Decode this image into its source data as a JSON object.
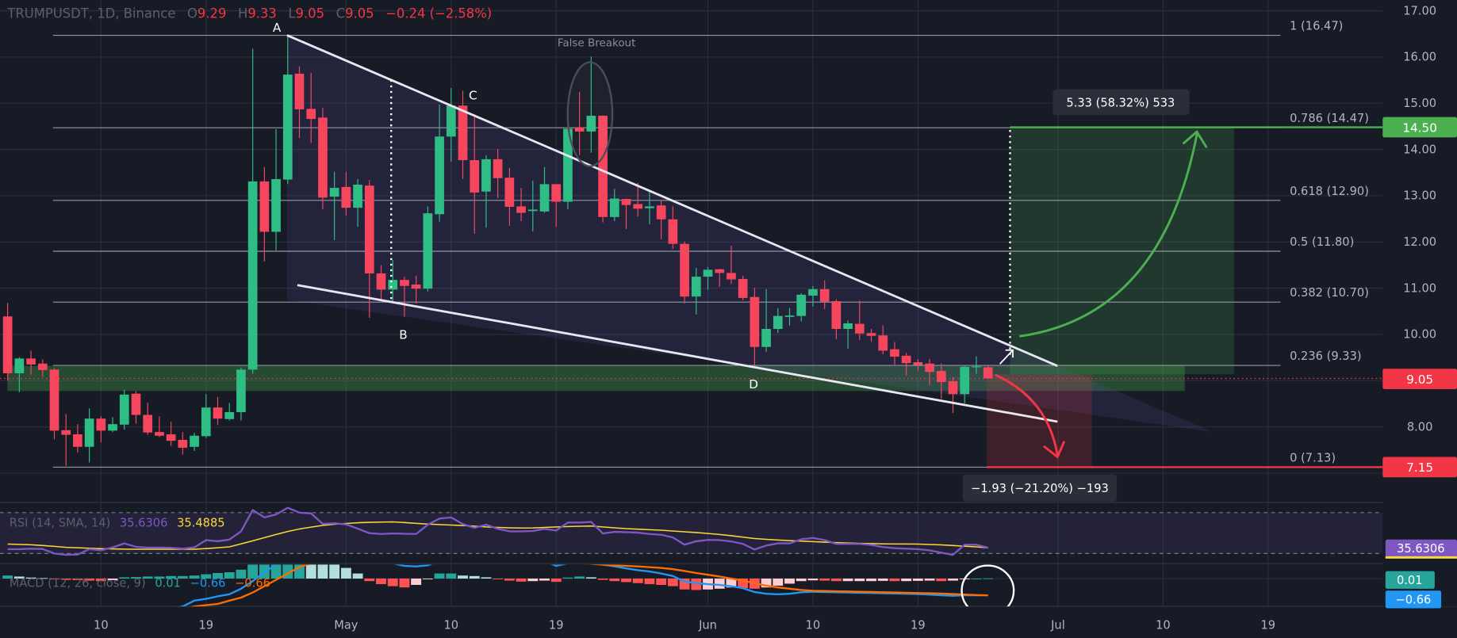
{
  "header": {
    "symbol": "TRUMPUSDT, 1D, Binance",
    "open_label": "O",
    "open": "9.29",
    "high_label": "H",
    "high": "9.33",
    "low_label": "L",
    "low": "9.05",
    "close_label": "C",
    "close": "9.05",
    "change": "−0.24 (−2.58%)"
  },
  "colors": {
    "background": "#171b26",
    "grid": "#2a2e39",
    "up": "#2ebd85",
    "down": "#f6465d",
    "rsi": "#7e57c2",
    "rsi_sma": "#fdd835",
    "macd": "#2196f3",
    "signal": "#ff6d00",
    "target": "#4caf50",
    "stop": "#f23645"
  },
  "price_axis": {
    "labels": [
      "17.00",
      "16.00",
      "15.00",
      "14.00",
      "13.00",
      "12.00",
      "11.00",
      "10.00",
      "8.00"
    ],
    "target_tag": "14.50",
    "last_price_tag": "9.05",
    "stop_tag": "7.15"
  },
  "time_axis": {
    "labels": [
      {
        "text": "10",
        "date": "04-10"
      },
      {
        "text": "19",
        "date": "04-19"
      },
      {
        "text": "May",
        "date": "05-01"
      },
      {
        "text": "10",
        "date": "05-10"
      },
      {
        "text": "19",
        "date": "05-19"
      },
      {
        "text": "Jun",
        "date": "06-01"
      },
      {
        "text": "10",
        "date": "06-10"
      },
      {
        "text": "19",
        "date": "06-19"
      },
      {
        "text": "Jul",
        "date": "07-01"
      },
      {
        "text": "10",
        "date": "07-10"
      },
      {
        "text": "19",
        "date": "07-19"
      }
    ]
  },
  "fibonacci": [
    {
      "label": "1 (16.47)",
      "price": 16.47
    },
    {
      "label": "0.786 (14.47)",
      "price": 14.47
    },
    {
      "label": "0.618 (12.90)",
      "price": 12.9
    },
    {
      "label": "0.5 (11.80)",
      "price": 11.8
    },
    {
      "label": "0.382 (10.70)",
      "price": 10.7
    },
    {
      "label": "0.236 (9.33)",
      "price": 9.33
    },
    {
      "label": "0 (7.13)",
      "price": 7.13
    }
  ],
  "annotations": {
    "point_a": "A",
    "point_b": "B",
    "point_c": "C",
    "point_d": "D",
    "false_breakout": "False Breakout",
    "target_box": "5.33 (58.32%) 533",
    "stop_box": "−1.93 (−21.20%) −193"
  },
  "rsi": {
    "label": "RSI (14, SMA, 14)",
    "value": "35.6306",
    "sma_value": "35.4885",
    "tag": "35.6306"
  },
  "macd": {
    "label": "MACD (12, 26, close, 9)",
    "hist_value": "0.01",
    "macd_value": "−0.66",
    "signal_value": "−0.66",
    "hist_tag": "0.01",
    "macd_tag": "−0.66"
  },
  "chart_data": {
    "type": "candlestick",
    "symbol": "TRUMPUSDT",
    "interval": "1D",
    "exchange": "Binance",
    "ylim": [
      6.6,
      17.3
    ],
    "columns": [
      "date",
      "open",
      "high",
      "low",
      "close"
    ],
    "candles": [
      [
        "04-02",
        10.39,
        10.68,
        9.0,
        9.16
      ],
      [
        "04-03",
        9.16,
        9.51,
        8.75,
        9.48
      ],
      [
        "04-04",
        9.48,
        9.65,
        9.13,
        9.35
      ],
      [
        "04-05",
        9.37,
        9.46,
        9.08,
        9.23
      ],
      [
        "04-06",
        9.24,
        9.27,
        7.73,
        7.92
      ],
      [
        "04-07",
        7.93,
        8.28,
        7.16,
        7.83
      ],
      [
        "04-08",
        7.84,
        8.06,
        7.45,
        7.57
      ],
      [
        "04-09",
        7.57,
        8.4,
        7.23,
        8.18
      ],
      [
        "04-10",
        8.18,
        8.23,
        7.67,
        7.92
      ],
      [
        "04-11",
        7.92,
        8.21,
        7.89,
        8.06
      ],
      [
        "04-12",
        8.05,
        8.8,
        7.94,
        8.7
      ],
      [
        "04-13",
        8.72,
        8.78,
        8.07,
        8.26
      ],
      [
        "04-14",
        8.26,
        8.52,
        7.83,
        7.88
      ],
      [
        "04-15",
        7.89,
        8.23,
        7.78,
        7.81
      ],
      [
        "04-16",
        7.84,
        8.11,
        7.59,
        7.7
      ],
      [
        "04-17",
        7.72,
        7.89,
        7.4,
        7.55
      ],
      [
        "04-18",
        7.57,
        7.87,
        7.48,
        7.81
      ],
      [
        "04-19",
        7.8,
        8.71,
        7.76,
        8.42
      ],
      [
        "04-20",
        8.42,
        8.65,
        8.04,
        8.18
      ],
      [
        "04-21",
        8.17,
        8.52,
        8.14,
        8.32
      ],
      [
        "04-22",
        8.32,
        9.29,
        8.14,
        9.24
      ],
      [
        "04-23",
        9.24,
        16.18,
        9.15,
        13.31
      ],
      [
        "04-24",
        13.31,
        13.62,
        11.58,
        12.22
      ],
      [
        "04-25",
        12.22,
        14.44,
        11.82,
        13.36
      ],
      [
        "04-26",
        13.35,
        16.49,
        13.25,
        15.62
      ],
      [
        "04-27",
        15.64,
        15.8,
        14.25,
        14.87
      ],
      [
        "04-28",
        14.88,
        15.66,
        14.14,
        14.66
      ],
      [
        "04-29",
        14.69,
        14.9,
        12.71,
        12.96
      ],
      [
        "04-30",
        12.98,
        13.52,
        12.04,
        13.17
      ],
      [
        "05-01",
        13.19,
        13.52,
        12.57,
        12.74
      ],
      [
        "05-02",
        12.74,
        13.36,
        12.33,
        13.24
      ],
      [
        "05-03",
        13.22,
        13.34,
        10.36,
        11.32
      ],
      [
        "05-04",
        11.32,
        11.5,
        10.74,
        10.97
      ],
      [
        "05-05",
        10.97,
        11.61,
        10.71,
        11.18
      ],
      [
        "05-06",
        11.18,
        11.25,
        10.38,
        11.05
      ],
      [
        "05-07",
        11.08,
        11.27,
        10.67,
        10.99
      ],
      [
        "05-08",
        10.99,
        12.77,
        10.93,
        12.62
      ],
      [
        "05-09",
        12.6,
        14.97,
        12.44,
        14.28
      ],
      [
        "05-10",
        14.28,
        15.33,
        13.74,
        14.95
      ],
      [
        "05-11",
        14.95,
        15.27,
        13.36,
        13.77
      ],
      [
        "05-12",
        13.77,
        14.76,
        12.18,
        13.07
      ],
      [
        "05-13",
        13.09,
        13.88,
        12.31,
        13.79
      ],
      [
        "05-14",
        13.79,
        14.01,
        12.95,
        13.38
      ],
      [
        "05-15",
        13.39,
        13.6,
        12.35,
        12.76
      ],
      [
        "05-16",
        12.77,
        13.17,
        12.45,
        12.63
      ],
      [
        "05-17",
        12.67,
        13.33,
        12.23,
        12.7
      ],
      [
        "05-18",
        12.66,
        13.62,
        12.63,
        13.25
      ],
      [
        "05-19",
        13.25,
        13.26,
        12.33,
        12.87
      ],
      [
        "05-20",
        12.87,
        14.45,
        12.71,
        14.45
      ],
      [
        "05-21",
        14.48,
        15.25,
        13.88,
        14.39
      ],
      [
        "05-22",
        14.39,
        16.01,
        13.93,
        14.73
      ],
      [
        "05-23",
        14.73,
        14.74,
        12.42,
        12.54
      ],
      [
        "05-24",
        12.54,
        13.15,
        12.45,
        12.94
      ],
      [
        "05-25",
        12.93,
        12.94,
        12.28,
        12.8
      ],
      [
        "05-26",
        12.82,
        13.28,
        12.55,
        12.72
      ],
      [
        "05-27",
        12.73,
        13.08,
        12.38,
        12.77
      ],
      [
        "05-28",
        12.79,
        12.89,
        12.06,
        12.49
      ],
      [
        "05-29",
        12.49,
        12.77,
        11.85,
        11.96
      ],
      [
        "05-30",
        11.96,
        12.01,
        10.67,
        10.82
      ],
      [
        "05-31",
        10.82,
        11.44,
        10.43,
        11.25
      ],
      [
        "06-01",
        11.25,
        11.46,
        10.97,
        11.4
      ],
      [
        "06-02",
        11.41,
        11.42,
        11.03,
        11.33
      ],
      [
        "06-03",
        11.33,
        11.92,
        11.09,
        11.19
      ],
      [
        "06-04",
        11.2,
        11.27,
        10.74,
        10.79
      ],
      [
        "06-05",
        10.81,
        11.01,
        9.34,
        9.73
      ],
      [
        "06-06",
        9.73,
        10.98,
        9.62,
        10.12
      ],
      [
        "06-07",
        10.12,
        10.57,
        10.03,
        10.4
      ],
      [
        "06-08",
        10.38,
        10.57,
        10.19,
        10.41
      ],
      [
        "06-09",
        10.4,
        10.89,
        10.28,
        10.86
      ],
      [
        "06-10",
        10.84,
        11.05,
        10.6,
        10.98
      ],
      [
        "06-11",
        10.98,
        11.17,
        10.55,
        10.71
      ],
      [
        "06-12",
        10.72,
        10.76,
        9.9,
        10.12
      ],
      [
        "06-13",
        10.12,
        10.3,
        9.69,
        10.24
      ],
      [
        "06-14",
        10.23,
        10.73,
        9.88,
        10.02
      ],
      [
        "06-15",
        10.03,
        10.12,
        9.84,
        9.97
      ],
      [
        "06-16",
        9.98,
        10.2,
        9.57,
        9.65
      ],
      [
        "06-17",
        9.68,
        9.84,
        9.35,
        9.52
      ],
      [
        "06-18",
        9.54,
        9.6,
        9.11,
        9.38
      ],
      [
        "06-19",
        9.4,
        9.47,
        9.22,
        9.34
      ],
      [
        "06-20",
        9.37,
        9.47,
        8.9,
        9.19
      ],
      [
        "06-21",
        9.21,
        9.37,
        8.61,
        8.97
      ],
      [
        "06-22",
        8.99,
        9.08,
        8.3,
        8.71
      ],
      [
        "06-23",
        8.71,
        9.33,
        8.51,
        9.3
      ],
      [
        "06-24",
        9.3,
        9.53,
        9.15,
        9.31
      ],
      [
        "06-25",
        9.29,
        9.33,
        9.05,
        9.05
      ]
    ],
    "rsi": [
      34.2,
      34.2,
      34.7,
      34.4,
      30.0,
      28.7,
      29.0,
      34.2,
      33.1,
      36.0,
      39.9,
      36.5,
      35.8,
      35.8,
      35.5,
      34.7,
      36.0,
      43.1,
      42.0,
      43.6,
      51.7,
      72.6,
      65.3,
      68.2,
      74.7,
      70.0,
      69.2,
      59.0,
      59.5,
      58.5,
      54.3,
      49.9,
      49.1,
      49.6,
      49.3,
      49.1,
      58.2,
      64.2,
      65.3,
      58.8,
      55.1,
      58.2,
      54.1,
      51.7,
      51.7,
      52.0,
      54.1,
      52.5,
      60.3,
      60.3,
      60.9,
      49.6,
      51.2,
      50.9,
      50.4,
      49.1,
      48.3,
      45.7,
      38.6,
      42.0,
      43.3,
      43.1,
      41.8,
      39.4,
      33.9,
      37.8,
      39.9,
      39.9,
      43.9,
      45.2,
      43.1,
      39.4,
      39.4,
      39.4,
      38.4,
      36.3,
      35.2,
      34.7,
      34.2,
      33.1,
      30.8,
      28.7,
      38.6,
      38.6,
      35.63
    ],
    "rsi_sma": [
      39.2,
      38.9,
      38.5,
      37.8,
      37.0,
      36.0,
      35.6,
      35.1,
      34.7,
      34.5,
      34.3,
      34.2,
      34.2,
      34.2,
      34.2,
      34.2,
      34.2,
      34.8,
      35.6,
      36.5,
      39.4,
      42.4,
      45.5,
      48.6,
      51.5,
      54.0,
      55.8,
      57.5,
      58.6,
      59.4,
      60.1,
      60.5,
      60.7,
      60.9,
      60.3,
      59.5,
      58.8,
      58.3,
      57.8,
      57.4,
      56.8,
      56.0,
      55.5,
      55.1,
      54.9,
      55.0,
      55.5,
      56.0,
      56.4,
      56.7,
      56.9,
      56.0,
      55.1,
      54.3,
      53.8,
      53.3,
      52.8,
      52.0,
      51.2,
      50.5,
      49.6,
      48.6,
      47.4,
      46.0,
      44.6,
      43.9,
      43.2,
      42.6,
      42.1,
      41.6,
      41.1,
      40.7,
      40.3,
      39.9,
      39.7,
      39.4,
      39.3,
      39.3,
      39.2,
      38.8,
      38.4,
      37.8,
      37.1,
      36.5,
      35.49
    ],
    "rsi_levels": [
      70,
      30
    ],
    "macd_hist": [
      0.12,
      0.08,
      0.04,
      0.02,
      -0.03,
      -0.05,
      -0.06,
      -0.08,
      -0.1,
      -0.06,
      0.05,
      0.06,
      0.08,
      0.08,
      0.1,
      0.1,
      0.12,
      0.17,
      0.22,
      0.25,
      0.35,
      0.66,
      0.7,
      0.75,
      0.8,
      0.8,
      0.75,
      0.7,
      0.6,
      0.42,
      0.2,
      -0.1,
      -0.22,
      -0.3,
      -0.35,
      -0.25,
      -0.03,
      0.2,
      0.2,
      0.12,
      0.1,
      0.05,
      -0.03,
      -0.08,
      -0.12,
      -0.1,
      -0.08,
      -0.13,
      0.04,
      0.08,
      0.05,
      -0.05,
      -0.1,
      -0.14,
      -0.18,
      -0.22,
      -0.25,
      -0.3,
      -0.43,
      -0.45,
      -0.43,
      -0.4,
      -0.35,
      -0.38,
      -0.4,
      -0.35,
      -0.28,
      -0.2,
      -0.1,
      -0.07,
      -0.08,
      -0.1,
      -0.1,
      -0.1,
      -0.1,
      -0.09,
      -0.1,
      -0.1,
      -0.09,
      -0.08,
      -0.1,
      -0.08,
      -0.03,
      0.0,
      0.01
    ],
    "macd_line": [
      -1.3,
      -1.3,
      -1.3,
      -1.3,
      -1.3,
      -1.3,
      -1.3,
      -1.3,
      -1.3,
      -1.3,
      -1.3,
      -1.3,
      -1.3,
      -1.3,
      -1.2,
      -1.1,
      -0.87,
      -0.8,
      -0.7,
      -0.62,
      -0.4,
      -0.1,
      0.25,
      0.55,
      0.8,
      0.9,
      0.9,
      0.9,
      0.9,
      0.9,
      0.85,
      0.8,
      0.7,
      0.6,
      0.5,
      0.48,
      0.52,
      0.7,
      0.7,
      0.7,
      0.7,
      0.7,
      0.7,
      0.7,
      0.7,
      0.7,
      0.7,
      0.5,
      0.6,
      0.6,
      0.6,
      0.55,
      0.48,
      0.4,
      0.33,
      0.28,
      0.2,
      0.1,
      -0.12,
      -0.18,
      -0.22,
      -0.25,
      -0.3,
      -0.38,
      -0.53,
      -0.6,
      -0.62,
      -0.6,
      -0.54,
      -0.52,
      -0.53,
      -0.54,
      -0.55,
      -0.56,
      -0.57,
      -0.58,
      -0.59,
      -0.6,
      -0.61,
      -0.63,
      -0.66,
      -0.68,
      -0.66,
      -0.66,
      -0.66
    ],
    "signal_line": [
      -1.4,
      -1.4,
      -1.4,
      -1.4,
      -1.4,
      -1.4,
      -1.4,
      -1.4,
      -1.4,
      -1.4,
      -1.4,
      -1.4,
      -1.4,
      -1.4,
      -1.3,
      -1.2,
      -1.1,
      -1.05,
      -1.0,
      -0.87,
      -0.75,
      -0.55,
      -0.3,
      -0.05,
      0.2,
      0.45,
      0.6,
      0.7,
      0.75,
      0.8,
      0.8,
      0.8,
      0.8,
      0.8,
      0.8,
      0.8,
      0.8,
      0.8,
      0.8,
      0.8,
      0.75,
      0.7,
      0.7,
      0.7,
      0.7,
      0.7,
      0.7,
      0.7,
      0.65,
      0.6,
      0.58,
      0.55,
      0.52,
      0.5,
      0.48,
      0.45,
      0.42,
      0.37,
      0.3,
      0.22,
      0.15,
      0.08,
      0.0,
      -0.08,
      -0.18,
      -0.28,
      -0.35,
      -0.4,
      -0.45,
      -0.48,
      -0.49,
      -0.5,
      -0.51,
      -0.52,
      -0.53,
      -0.54,
      -0.55,
      -0.56,
      -0.57,
      -0.58,
      -0.59,
      -0.61,
      -0.63,
      -0.65,
      -0.66
    ]
  }
}
